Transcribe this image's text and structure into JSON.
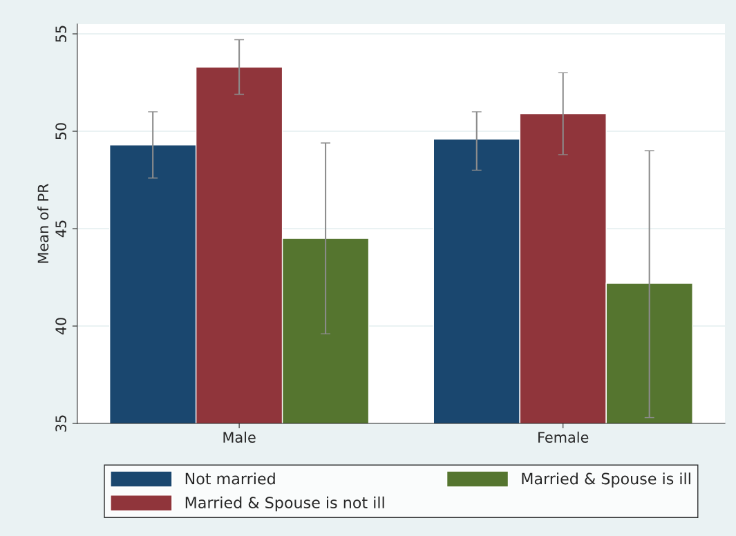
{
  "chart_data": {
    "type": "bar",
    "ylabel": "Mean of PR",
    "categories": [
      "Male",
      "Female"
    ],
    "series": [
      {
        "name": "Not married",
        "color": "#1a476f",
        "values": [
          49.3,
          49.6
        ],
        "errors": [
          [
            47.6,
            51.0
          ],
          [
            48.0,
            51.0
          ]
        ]
      },
      {
        "name": "Married & Spouse is not ill",
        "color": "#90353b",
        "values": [
          53.3,
          50.9
        ],
        "errors": [
          [
            51.9,
            54.7
          ],
          [
            48.8,
            53.0
          ]
        ]
      },
      {
        "name": "Married & Spouse is ill",
        "color": "#55752f",
        "values": [
          44.5,
          42.2
        ],
        "errors": [
          [
            39.6,
            49.4
          ],
          [
            35.3,
            49.0
          ]
        ]
      }
    ],
    "ylim": [
      35,
      55.5
    ],
    "yticks": [
      35,
      40,
      45,
      50,
      55
    ],
    "grid": "y",
    "legend": "bottom"
  }
}
